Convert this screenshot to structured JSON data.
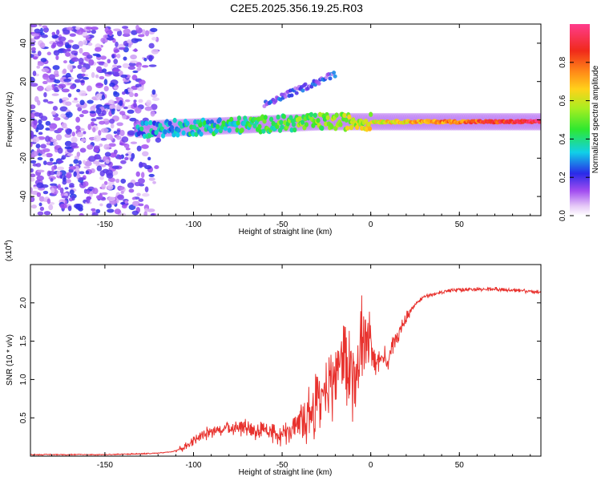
{
  "title": "C2E5.2025.356.19.25.R03",
  "colors": {
    "snr_line": "#e8322e",
    "cold": "#ebd9f7",
    "mid_purple": "#7a1ff0",
    "cyan": "#10d0e8",
    "green": "#2ee830",
    "yellow": "#ffd21a",
    "red": "#f02a1a"
  },
  "chart_data": [
    {
      "type": "heatmap",
      "title": "C2E5.2025.356.19.25.R03",
      "xlabel": "Height of straight line (km)",
      "ylabel": "Frequency (Hz)",
      "xlim": [
        -192,
        96
      ],
      "ylim": [
        -50,
        50
      ],
      "xticks": [
        "-150",
        "-100",
        "-50",
        "0",
        "50"
      ],
      "xtick_values": [
        -150,
        -100,
        -50,
        0,
        50
      ],
      "yticks": [
        "-40",
        "-20",
        "0",
        "20",
        "40"
      ],
      "ytick_values": [
        -40,
        -20,
        0,
        20,
        40
      ],
      "colorbar": {
        "label": "Normalized spectral amplitude",
        "range": [
          0,
          1
        ],
        "ticks": [
          "0.0",
          "0.2",
          "0.4",
          "0.6",
          "0.8"
        ],
        "tick_values": [
          0.0,
          0.2,
          0.4,
          0.6,
          0.8
        ]
      },
      "features": [
        {
          "name": "noise",
          "x_range": [
            -192,
            -118
          ],
          "freq_range": [
            -50,
            50
          ],
          "amplitude": 0.15
        },
        {
          "name": "signal-band",
          "x_range": [
            -132,
            96
          ],
          "freq_start": -5,
          "freq_end": -1,
          "amplitude_start": 0.3,
          "amplitude_end": 0.95
        },
        {
          "name": "upper-echo",
          "x_range": [
            -60,
            -20
          ],
          "freq_start": 8,
          "freq_end": 24,
          "amplitude": 0.2
        }
      ]
    },
    {
      "type": "line",
      "xlabel": "Height of straight line (km)",
      "ylabel": "SNR (10 * v/v)",
      "ylabel_multiplier": "(x10",
      "ylabel_multiplier_exp": "4",
      "ylabel_multiplier_close": ")",
      "xlim": [
        -192,
        96
      ],
      "ylim": [
        0,
        2.5
      ],
      "xticks": [
        "-150",
        "-100",
        "-50",
        "0",
        "50"
      ],
      "xtick_values": [
        -150,
        -100,
        -50,
        0,
        50
      ],
      "yticks": [
        "0.5",
        "1.0",
        "1.5",
        "2.0"
      ],
      "ytick_values": [
        0.5,
        1.0,
        1.5,
        2.0
      ],
      "series": [
        {
          "name": "SNR",
          "x": [
            -192,
            -150,
            -130,
            -120,
            -112,
            -105,
            -100,
            -95,
            -90,
            -85,
            -80,
            -76,
            -72,
            -68,
            -64,
            -60,
            -55,
            -50,
            -45,
            -40,
            -36,
            -32,
            -28,
            -25,
            -22,
            -19,
            -16,
            -13,
            -11,
            -9,
            -7,
            -5,
            -3,
            0,
            3,
            6,
            9,
            12,
            15,
            18,
            21,
            25,
            30,
            40,
            50,
            60,
            70,
            80,
            90,
            96
          ],
          "values": [
            0.02,
            0.02,
            0.03,
            0.04,
            0.06,
            0.12,
            0.2,
            0.27,
            0.32,
            0.35,
            0.37,
            0.39,
            0.38,
            0.36,
            0.33,
            0.31,
            0.3,
            0.3,
            0.32,
            0.38,
            0.5,
            0.65,
            0.8,
            0.9,
            1.0,
            1.1,
            1.3,
            1.2,
            1.0,
            0.9,
            1.25,
            1.5,
            1.55,
            1.45,
            1.2,
            1.3,
            1.2,
            1.4,
            1.55,
            1.7,
            1.85,
            1.98,
            2.08,
            2.14,
            2.17,
            2.18,
            2.18,
            2.17,
            2.15,
            2.14
          ]
        }
      ]
    }
  ]
}
